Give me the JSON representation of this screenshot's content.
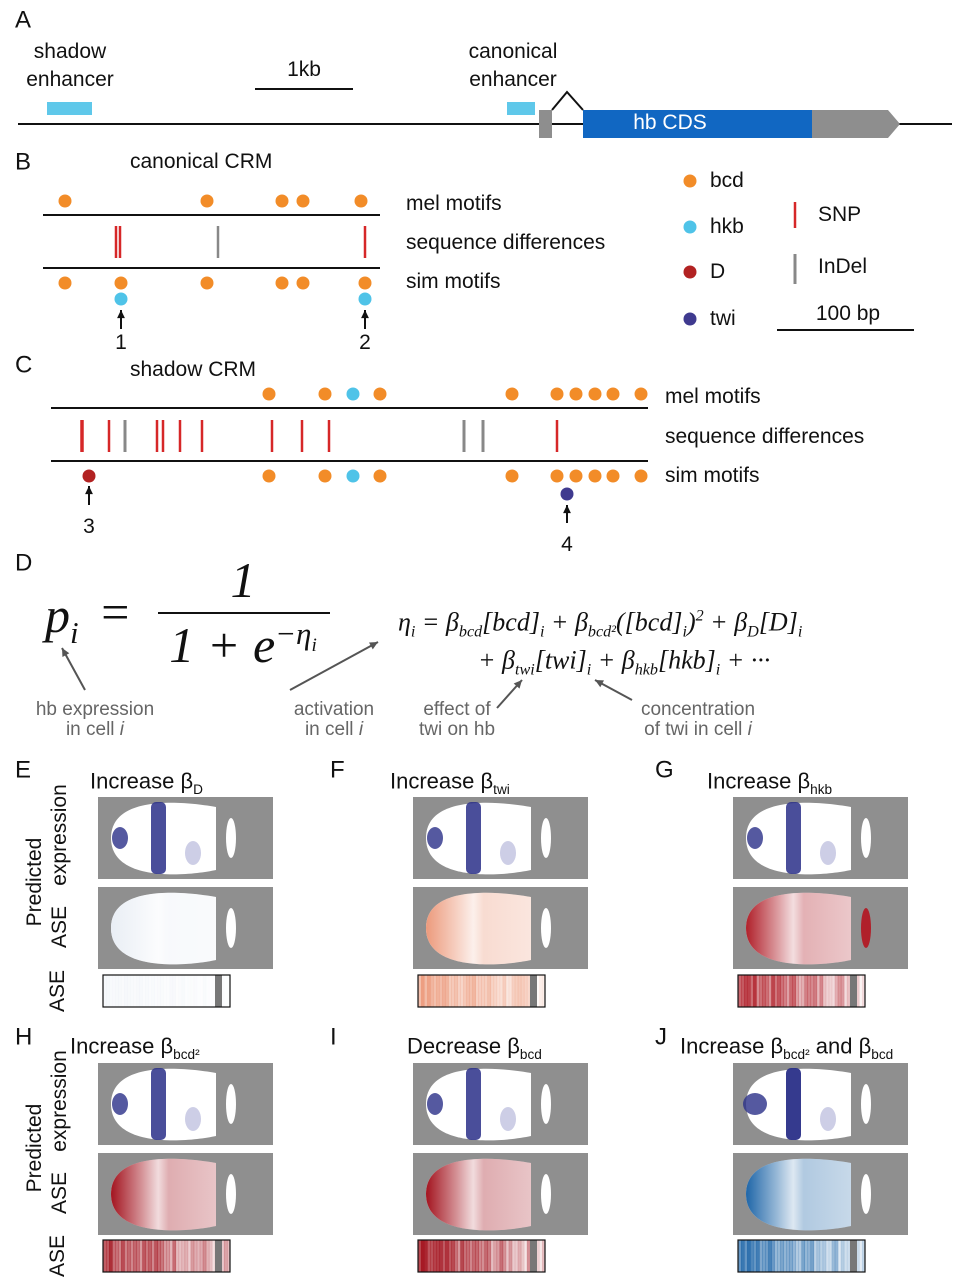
{
  "panel_a": {
    "label": "A",
    "shadow_enhancer": [
      "shadow",
      "enhancer"
    ],
    "scale": "1kb",
    "canonical_enhancer": [
      "canonical",
      "enhancer"
    ],
    "cds": "hb CDS"
  },
  "panel_b": {
    "label": "B",
    "title": "canonical CRM",
    "rows": [
      "mel motifs",
      "sequence differences",
      "sim motifs"
    ],
    "markers": [
      "1",
      "2"
    ]
  },
  "legend": {
    "motifs": [
      {
        "name": "bcd",
        "color": "#f28c28"
      },
      {
        "name": "hkb",
        "color": "#4fc3e8"
      },
      {
        "name": "D",
        "color": "#b22222"
      },
      {
        "name": "twi",
        "color": "#3f3a8f"
      }
    ],
    "differences": [
      {
        "name": "SNP",
        "color": "#d62728"
      },
      {
        "name": "InDel",
        "color": "#888888"
      }
    ],
    "scale": "100 bp"
  },
  "panel_c": {
    "label": "C",
    "title": "shadow CRM",
    "rows": [
      "mel motifs",
      "sequence differences",
      "sim motifs"
    ],
    "markers": [
      "3",
      "4"
    ]
  },
  "panel_d": {
    "label": "D",
    "eq1": {
      "lhs": [
        {
          "text": "p",
          "sub": "i"
        }
      ],
      "equals": "=",
      "numerator": "1",
      "denominator": [
        {
          "text": "1 + e",
          "sup": "−η",
          "supsub": "i"
        }
      ]
    },
    "eq2_line1": [
      {
        "text": "η",
        "sub": "i"
      },
      {
        "text": " = β",
        "sub": "bcd"
      },
      {
        "text": "[bcd]",
        "sub": "i"
      },
      {
        "text": " + β",
        "sub": "bcd²"
      },
      {
        "text": "([bcd]",
        "sub": "i"
      },
      {
        "text": ")",
        "sup": "2"
      },
      {
        "text": " + β",
        "sub": "D"
      },
      {
        "text": "[D]",
        "sub": "i"
      }
    ],
    "eq2_line2": [
      {
        "text": "+ β",
        "sub": "twi"
      },
      {
        "text": "[twi]",
        "sub": "i"
      },
      {
        "text": " + β",
        "sub": "hkb"
      },
      {
        "text": "[hkb]",
        "sub": "i"
      },
      {
        "text": " + ···"
      }
    ],
    "annotations": [
      [
        [
          {
            "text": "hb expression"
          }
        ],
        [
          {
            "text": "in cell "
          },
          {
            "text": "i",
            "italic": true
          }
        ]
      ],
      [
        [
          {
            "text": "activation"
          }
        ],
        [
          {
            "text": "in cell "
          },
          {
            "text": "i",
            "italic": true
          }
        ]
      ],
      [
        [
          {
            "text": "effect of"
          }
        ],
        [
          {
            "text": "twi on hb"
          }
        ]
      ],
      [
        [
          {
            "text": "concentration"
          }
        ],
        [
          {
            "text": "of twi in cell "
          },
          {
            "text": "i",
            "italic": true
          }
        ]
      ]
    ]
  },
  "row_labels": {
    "predicted": "Predicted",
    "expression": "expression",
    "ase": "ASE",
    "measured_ase": "ASE"
  },
  "panels": [
    {
      "label": "E",
      "title": [
        {
          "text": "Increase β",
          "sub": "D"
        }
      ],
      "ase_color": "#e9eef5"
    },
    {
      "label": "F",
      "title": [
        {
          "text": "Increase β",
          "sub": "twi"
        }
      ],
      "ase_color": "#ec9a7c"
    },
    {
      "label": "G",
      "title": [
        {
          "text": "Increase β",
          "sub": "hkb"
        }
      ],
      "ase_color": "#b0202a"
    },
    {
      "label": "H",
      "title": [
        {
          "text": "Increase β",
          "sub": "bcd²"
        }
      ],
      "ase_color": "#a3141f"
    },
    {
      "label": "I",
      "title": [
        {
          "text": "Decrease β",
          "sub": "bcd"
        }
      ],
      "ase_color": "#a3141f"
    },
    {
      "label": "J",
      "title": [
        {
          "text": "Increase β",
          "sub": "bcd²"
        },
        {
          "text": " and β",
          "sub": "bcd"
        }
      ],
      "ase_color": "#1f66a8"
    }
  ]
}
